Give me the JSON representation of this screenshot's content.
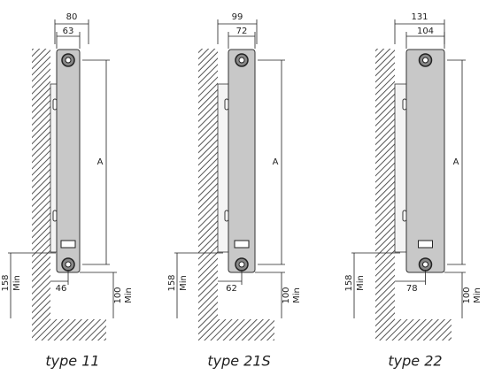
{
  "diagrams": [
    {
      "label": "type 11",
      "outer_width": "80",
      "inner_width": "63",
      "height": "A",
      "wall_gap": "46",
      "floor_clearance": "158",
      "floor_clearance_note": "Min",
      "bottom_clearance": "100",
      "bottom_clearance_note": "Min"
    },
    {
      "label": "type 21S",
      "outer_width": "99",
      "inner_width": "72",
      "height": "A",
      "wall_gap": "62",
      "floor_clearance": "158",
      "floor_clearance_note": "Min",
      "bottom_clearance": "100",
      "bottom_clearance_note": "Min"
    },
    {
      "label": "type 22",
      "outer_width": "131",
      "inner_width": "104",
      "height": "A",
      "wall_gap": "78",
      "floor_clearance": "158",
      "floor_clearance_note": "Min",
      "bottom_clearance": "100",
      "bottom_clearance_note": "Min"
    }
  ]
}
